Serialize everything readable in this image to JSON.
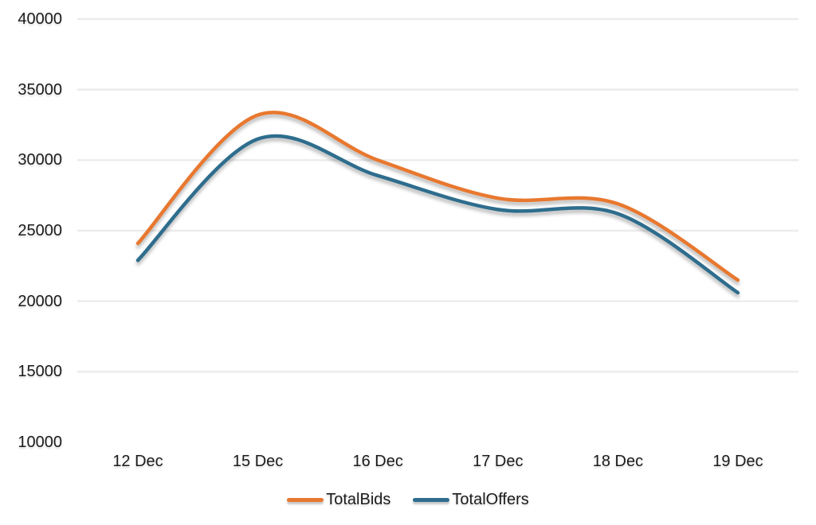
{
  "chart_data": {
    "type": "line",
    "title": "",
    "xlabel": "",
    "ylabel": "",
    "categories": [
      "12 Dec",
      "15 Dec",
      "16 Dec",
      "17 Dec",
      "18 Dec",
      "19 Dec"
    ],
    "series": [
      {
        "name": "TotalBids",
        "color": "#e8782f",
        "values": [
          24100,
          33200,
          30000,
          27300,
          26900,
          21500
        ]
      },
      {
        "name": "TotalOffers",
        "color": "#2e6d8d",
        "values": [
          22900,
          31500,
          28900,
          26500,
          26200,
          20600
        ]
      }
    ],
    "ylim": [
      10000,
      40000
    ],
    "y_ticks": [
      40000,
      35000,
      30000,
      25000,
      20000,
      15000,
      10000
    ],
    "grid": "horizontal",
    "gridline_color": "#ececec",
    "legend_position": "bottom",
    "line_style": "smooth"
  }
}
